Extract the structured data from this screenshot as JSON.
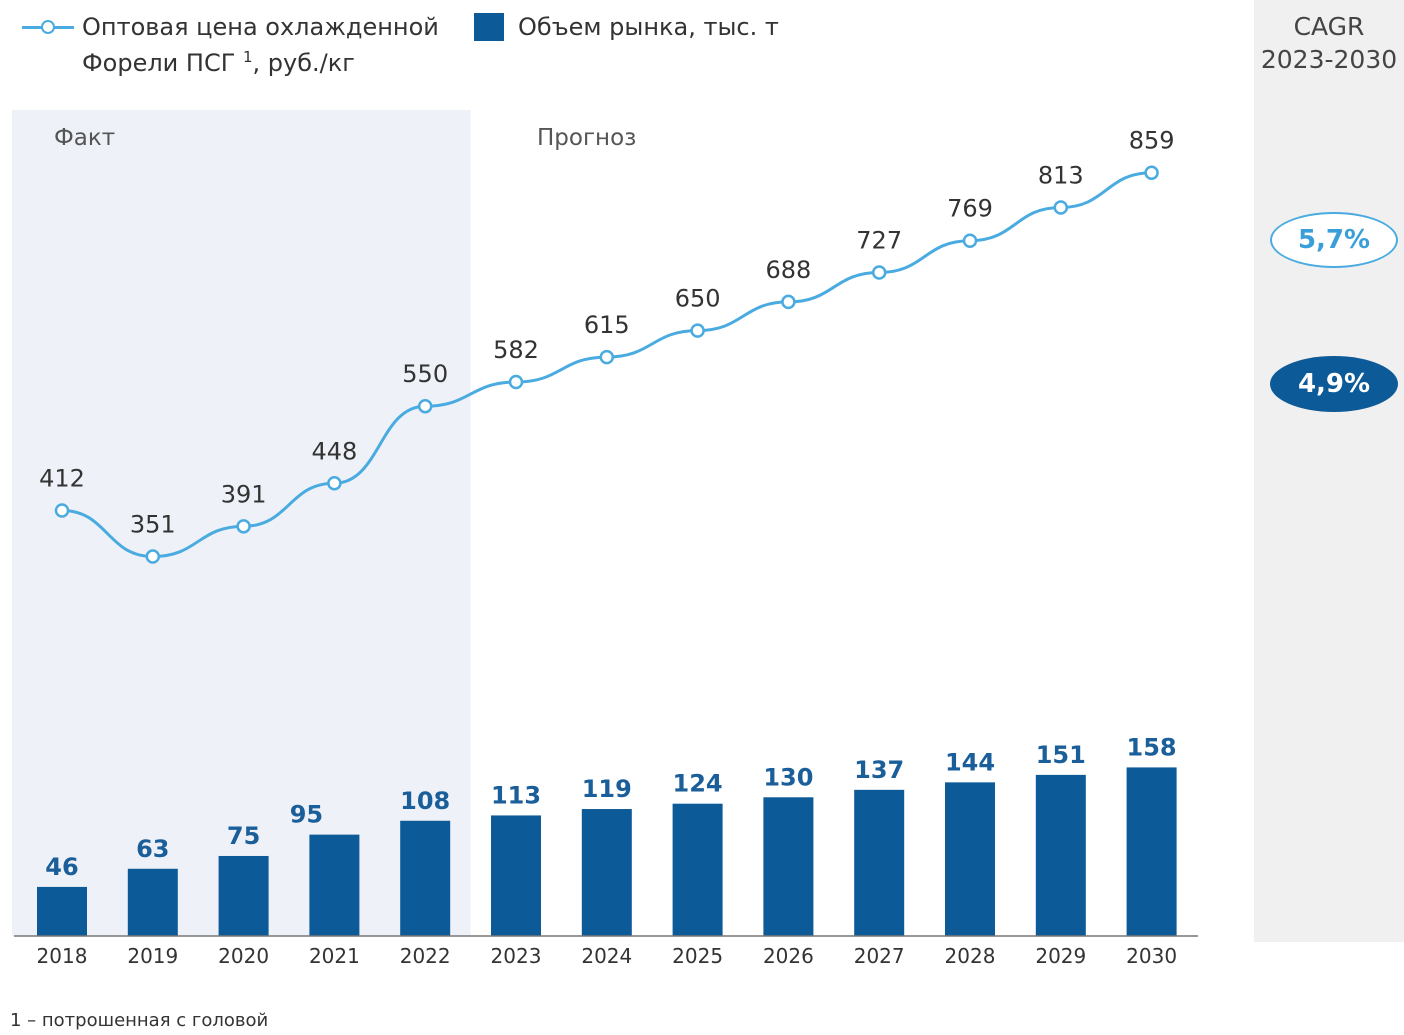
{
  "legend": {
    "price_line1": "Оптовая цена охлажденной",
    "price_line2_pre": "Форели ПСГ ",
    "price_sup": "1",
    "price_line2_post": ", руб./кг",
    "volume": "Объем рынка, тыс. т"
  },
  "cagr": {
    "title_line1": "CAGR",
    "title_line2": "2023-2030",
    "price": "5,7%",
    "volume": "4,9%"
  },
  "footnote": "1 – потрошенная с головой",
  "colors": {
    "bar": "#0d5a98",
    "bar_label": "#1a5e9a",
    "line": "#4aabe0",
    "fact_bg": "#eef2f8",
    "cagr_bg": "#f0f0f0"
  },
  "chart_data": {
    "type": "bar",
    "categories": [
      "2018",
      "2019",
      "2020",
      "2021",
      "2022",
      "2023",
      "2024",
      "2025",
      "2026",
      "2027",
      "2028",
      "2029",
      "2030"
    ],
    "series": [
      {
        "name": "Объем рынка, тыс. т",
        "type": "bar",
        "values": [
          46,
          63,
          75,
          95,
          108,
          113,
          119,
          124,
          130,
          137,
          144,
          151,
          158
        ]
      },
      {
        "name": "Оптовая цена охлажденной Форели ПСГ 1, руб./кг",
        "type": "line",
        "values": [
          412,
          351,
          391,
          448,
          550,
          582,
          615,
          650,
          688,
          727,
          769,
          813,
          859
        ]
      }
    ],
    "regions": [
      {
        "label": "Факт",
        "categories": [
          "2018",
          "2019",
          "2020",
          "2021",
          "2022"
        ]
      },
      {
        "label": "Прогноз",
        "categories": [
          "2023",
          "2024",
          "2025",
          "2026",
          "2027",
          "2028",
          "2029",
          "2030"
        ]
      }
    ],
    "title": "",
    "xlabel": "",
    "ylabel": ""
  }
}
